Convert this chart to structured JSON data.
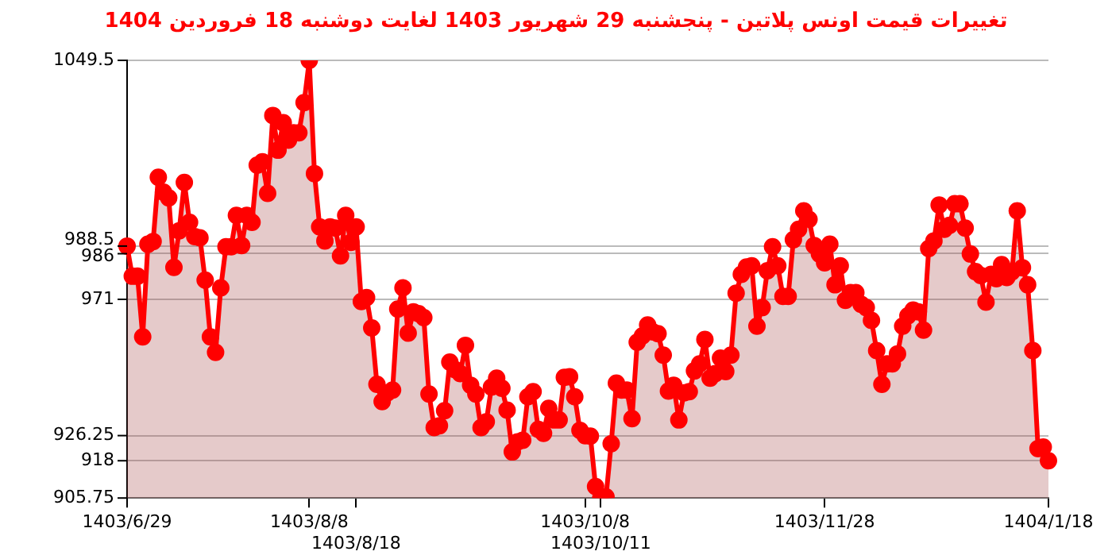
{
  "chart_data": {
    "type": "area",
    "title": "تغییرات قیمت اونس پلاتین - پنجشنبه  29 شهریور 1403 لغایت  دوشنبه  18 فروردین 1404",
    "categories": [
      "1403/6/29",
      null,
      null,
      null,
      null,
      null,
      null,
      null,
      null,
      null,
      null,
      null,
      null,
      null,
      null,
      null,
      null,
      null,
      null,
      null,
      null,
      null,
      null,
      null,
      null,
      null,
      null,
      null,
      null,
      null,
      null,
      null,
      null,
      null,
      null,
      "1403/8/8",
      null,
      null,
      null,
      null,
      null,
      null,
      null,
      null,
      "1403/8/18",
      null,
      null,
      null,
      null,
      null,
      null,
      null,
      null,
      null,
      null,
      null,
      null,
      null,
      null,
      null,
      null,
      null,
      null,
      null,
      null,
      null,
      null,
      null,
      null,
      null,
      null,
      null,
      null,
      null,
      null,
      null,
      null,
      null,
      null,
      null,
      null,
      null,
      null,
      null,
      null,
      null,
      null,
      null,
      "1403/10/8",
      null,
      null,
      "1403/10/11",
      null,
      null,
      null,
      null,
      null,
      null,
      null,
      null,
      null,
      null,
      null,
      null,
      null,
      null,
      null,
      null,
      null,
      null,
      null,
      null,
      null,
      null,
      null,
      null,
      null,
      null,
      null,
      null,
      null,
      null,
      null,
      null,
      null,
      null,
      null,
      null,
      null,
      null,
      null,
      null,
      null,
      null,
      "1403/11/28",
      null,
      null,
      null,
      null,
      null,
      null,
      null,
      null,
      null,
      null,
      null,
      null,
      null,
      null,
      null,
      null,
      null,
      null,
      null,
      null,
      null,
      null,
      null,
      null,
      null,
      null,
      null,
      null,
      null,
      null,
      null,
      null,
      null,
      null,
      null,
      null,
      null,
      null,
      null,
      null,
      null,
      null,
      "1404/1/18"
    ],
    "series": [
      {
        "color": "#ff0000",
        "values": [
          988.5,
          978.6,
          978.6,
          958.7,
          989.1,
          990,
          1011.1,
          1006.2,
          1004.3,
          981.5,
          993.5,
          1009.4,
          996.3,
          991.6,
          991.2,
          977.3,
          958.7,
          953.6,
          974.8,
          988.3,
          988.3,
          998.6,
          988.7,
          998.6,
          996.3,
          1015.1,
          1016.2,
          1005.8,
          1031.4,
          1020,
          1029,
          1023.3,
          1025.7,
          1025.7,
          1035.6,
          1049.5,
          1012.3,
          994.8,
          990.2,
          994.8,
          994.4,
          985.3,
          998.6,
          989.7,
          994.8,
          970.3,
          971.6,
          961.6,
          943.1,
          937.4,
          940.3,
          941.2,
          967.8,
          974.8,
          959.9,
          966.9,
          966.3,
          965,
          939.9,
          928.9,
          929.5,
          934.4,
          950.4,
          947.9,
          946.6,
          955.9,
          942.8,
          939.9,
          928.9,
          930.8,
          942.2,
          945.1,
          941.8,
          934.6,
          920.9,
          924.2,
          924.7,
          939,
          940.7,
          928.3,
          927,
          935.2,
          931.4,
          931.4,
          945.4,
          945.6,
          939,
          928,
          926.2,
          926.1,
          909.5,
          905.8,
          906.1,
          923.6,
          943.5,
          941.2,
          941.2,
          931.8,
          956.9,
          959,
          962.6,
          960.3,
          959.7,
          952.7,
          940.9,
          942.8,
          931.4,
          940.3,
          940.7,
          947.5,
          949.8,
          957.8,
          945.1,
          946.6,
          951.7,
          947.3,
          952.7,
          973,
          979.2,
          981.6,
          982,
          962.2,
          968.3,
          980.4,
          988.3,
          982,
          972,
          972,
          990.6,
          994,
          1000.1,
          997.3,
          988.7,
          985.9,
          983,
          989.1,
          975.8,
          982,
          970.7,
          973.2,
          973.2,
          969.4,
          968.3,
          964.1,
          954.2,
          943.1,
          949.8,
          949.8,
          953.1,
          962.2,
          965.6,
          967.5,
          966.9,
          960.9,
          987.7,
          990.2,
          1002,
          994,
          995.3,
          1002.4,
          1002.4,
          994.4,
          985.9,
          980.1,
          978.8,
          970.1,
          979.2,
          977.8,
          982.4,
          978.2,
          980.1,
          1000.1,
          981.4,
          975.8,
          954.2,
          922,
          922.5,
          918
        ]
      }
    ],
    "ylim": [
      905.75,
      1049.5
    ],
    "yticks": [
      905.75,
      918,
      926.25,
      971,
      986,
      988.5,
      1049.5
    ],
    "grid": "y",
    "marker": "circle",
    "line_style": "solid"
  }
}
